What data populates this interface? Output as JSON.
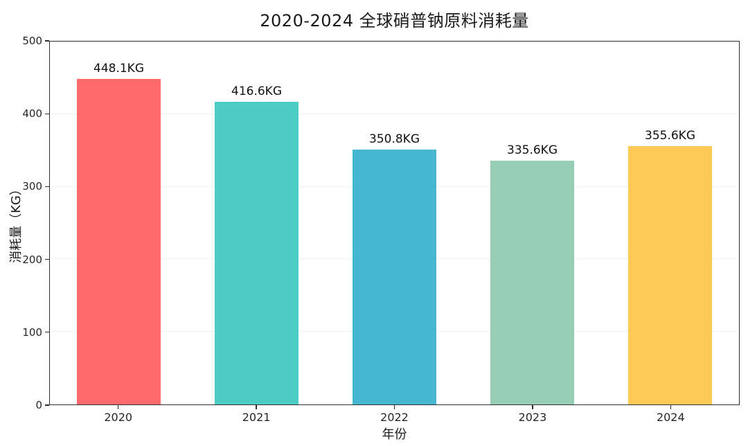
{
  "chart_data": {
    "type": "bar",
    "title": "2020-2024 全球硝普钠原料消耗量",
    "xlabel": "年份",
    "ylabel": "消耗量（KG）",
    "categories": [
      "2020",
      "2021",
      "2022",
      "2023",
      "2024"
    ],
    "values": [
      448.1,
      416.6,
      350.8,
      335.6,
      355.6
    ],
    "value_labels": [
      "448.1KG",
      "416.6KG",
      "350.8KG",
      "335.6KG",
      "355.6KG"
    ],
    "bar_colors": [
      "#FF6B6B",
      "#4ECDC4",
      "#45B7D1",
      "#96CEB4",
      "#FECA57"
    ],
    "ylim": [
      0,
      500
    ],
    "yticks": [
      0,
      100,
      200,
      300,
      400,
      500
    ],
    "grid": "horizontal-major",
    "grid_color": "#f0f0f0",
    "spine_color": "#2d2d2d",
    "legend": "none",
    "background": "#ffffff"
  }
}
